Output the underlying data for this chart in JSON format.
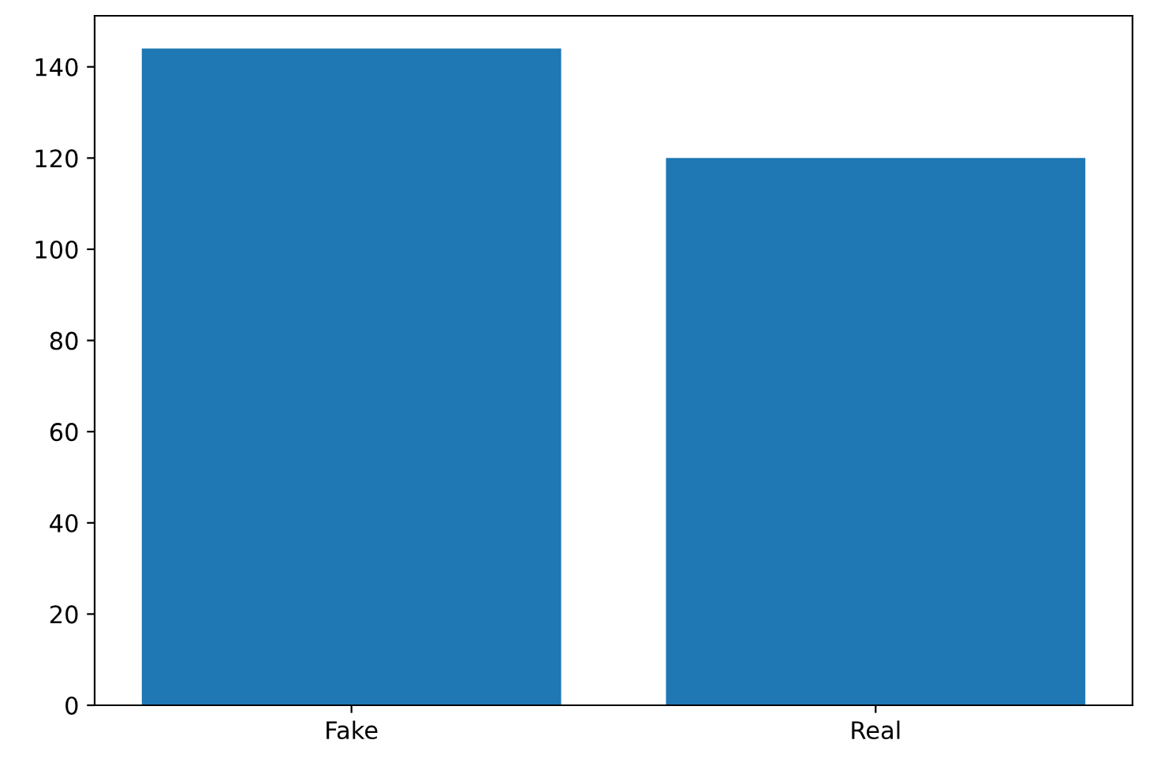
{
  "chart_data": {
    "type": "bar",
    "categories": [
      "Fake",
      "Real"
    ],
    "values": [
      144,
      120
    ],
    "color": "#1f77b4",
    "ylim": [
      0,
      151.2
    ],
    "yticks": [
      0,
      20,
      40,
      60,
      80,
      100,
      120,
      140
    ],
    "grid": false
  }
}
